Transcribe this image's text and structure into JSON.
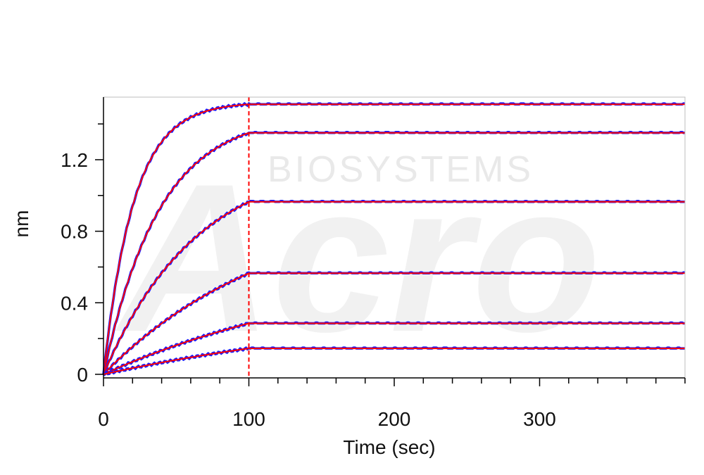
{
  "chart_data": {
    "type": "line",
    "title": "",
    "xlabel": "Time (sec)",
    "ylabel": "nm",
    "xlim": [
      0,
      400
    ],
    "ylim": [
      -0.02,
      1.55
    ],
    "x_ticks": [
      0,
      100,
      200,
      300
    ],
    "y_ticks": [
      0,
      0.4,
      0.8,
      1.2
    ],
    "x_minor_step": 20,
    "y_minor_step": 0.2,
    "association_end": 100,
    "grid": false,
    "legend": "none",
    "colors": {
      "measured": "#1a1aff",
      "fit": "#ff0000",
      "axis": "#000000"
    },
    "watermark": {
      "text": "BIOSYSTEMS",
      "logo": "Acro"
    },
    "series": [
      {
        "plateau": 1.51,
        "rate": 0.048
      },
      {
        "plateau": 1.35,
        "rate": 0.026
      },
      {
        "plateau": 0.965,
        "rate": 0.0155
      },
      {
        "plateau": 0.565,
        "rate": 0.0085
      },
      {
        "plateau": 0.285,
        "rate": 0.0055
      },
      {
        "plateau": 0.145,
        "rate": 0.0045
      }
    ]
  }
}
